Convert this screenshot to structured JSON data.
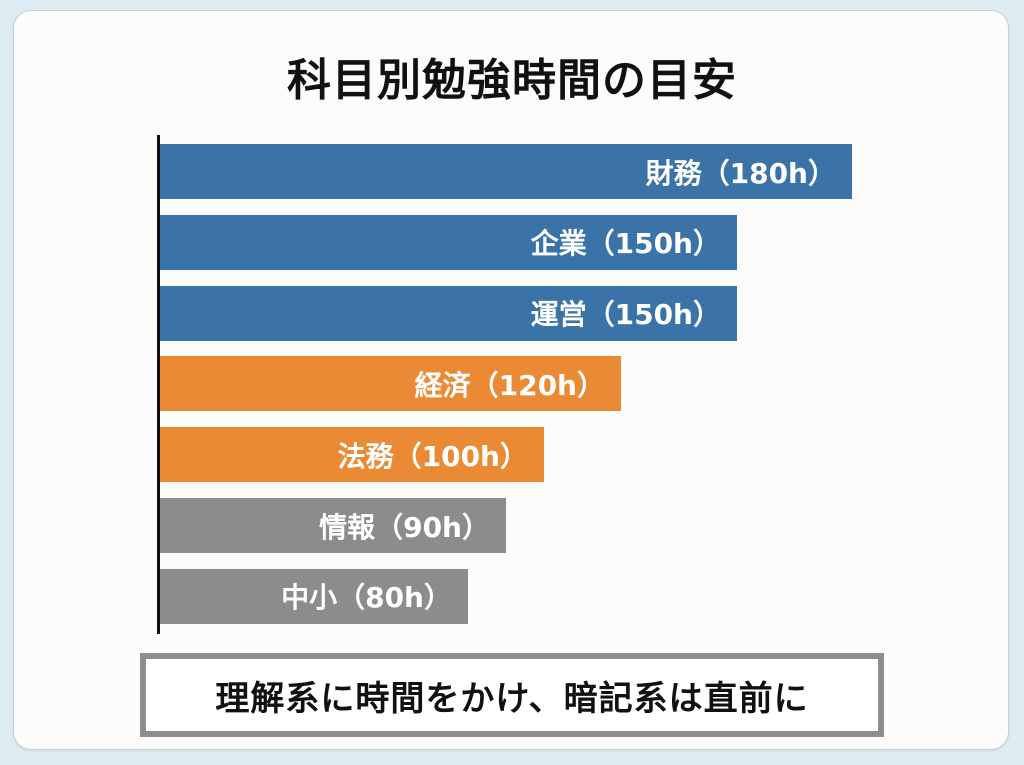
{
  "title": "科目別勉強時間の目安",
  "colors": {
    "background": "#dcecf1",
    "card": "#fcfcfb",
    "blue": "#3a73a8",
    "orange": "#ea8a35",
    "gray": "#8c8c8c",
    "axis": "#111111",
    "footer_border": "#8e8e8e"
  },
  "bars": [
    {
      "label": "財務（180h）",
      "subject": "財務",
      "hours": 180,
      "group": "blue"
    },
    {
      "label": "企業（150h）",
      "subject": "企業",
      "hours": 150,
      "group": "blue"
    },
    {
      "label": "運営（150h）",
      "subject": "運営",
      "hours": 150,
      "group": "blue"
    },
    {
      "label": "経済（120h）",
      "subject": "経済",
      "hours": 120,
      "group": "orange"
    },
    {
      "label": "法務（100h）",
      "subject": "法務",
      "hours": 100,
      "group": "orange"
    },
    {
      "label": "情報（90h）",
      "subject": "情報",
      "hours": 90,
      "group": "gray"
    },
    {
      "label": "中小（80h）",
      "subject": "中小",
      "hours": 80,
      "group": "gray"
    }
  ],
  "footer": "理解系に時間をかけ、暗記系は直前に",
  "chart_data": {
    "type": "bar",
    "orientation": "horizontal",
    "title": "科目別勉強時間の目安",
    "categories": [
      "財務",
      "企業",
      "運営",
      "経済",
      "法務",
      "情報",
      "中小"
    ],
    "values": [
      180,
      150,
      150,
      120,
      100,
      90,
      80
    ],
    "unit": "h",
    "data_labels": [
      "財務（180h）",
      "企業（150h）",
      "運営（150h）",
      "経済（120h）",
      "法務（100h）",
      "情報（90h）",
      "中小（80h）"
    ],
    "bar_colors": [
      "#3a73a8",
      "#3a73a8",
      "#3a73a8",
      "#ea8a35",
      "#ea8a35",
      "#8c8c8c",
      "#8c8c8c"
    ],
    "xlabel": "",
    "ylabel": "",
    "xlim": [
      0,
      180
    ],
    "grid": false,
    "legend": null,
    "annotation": "理解系に時間をかけ、暗記系は直前に"
  }
}
